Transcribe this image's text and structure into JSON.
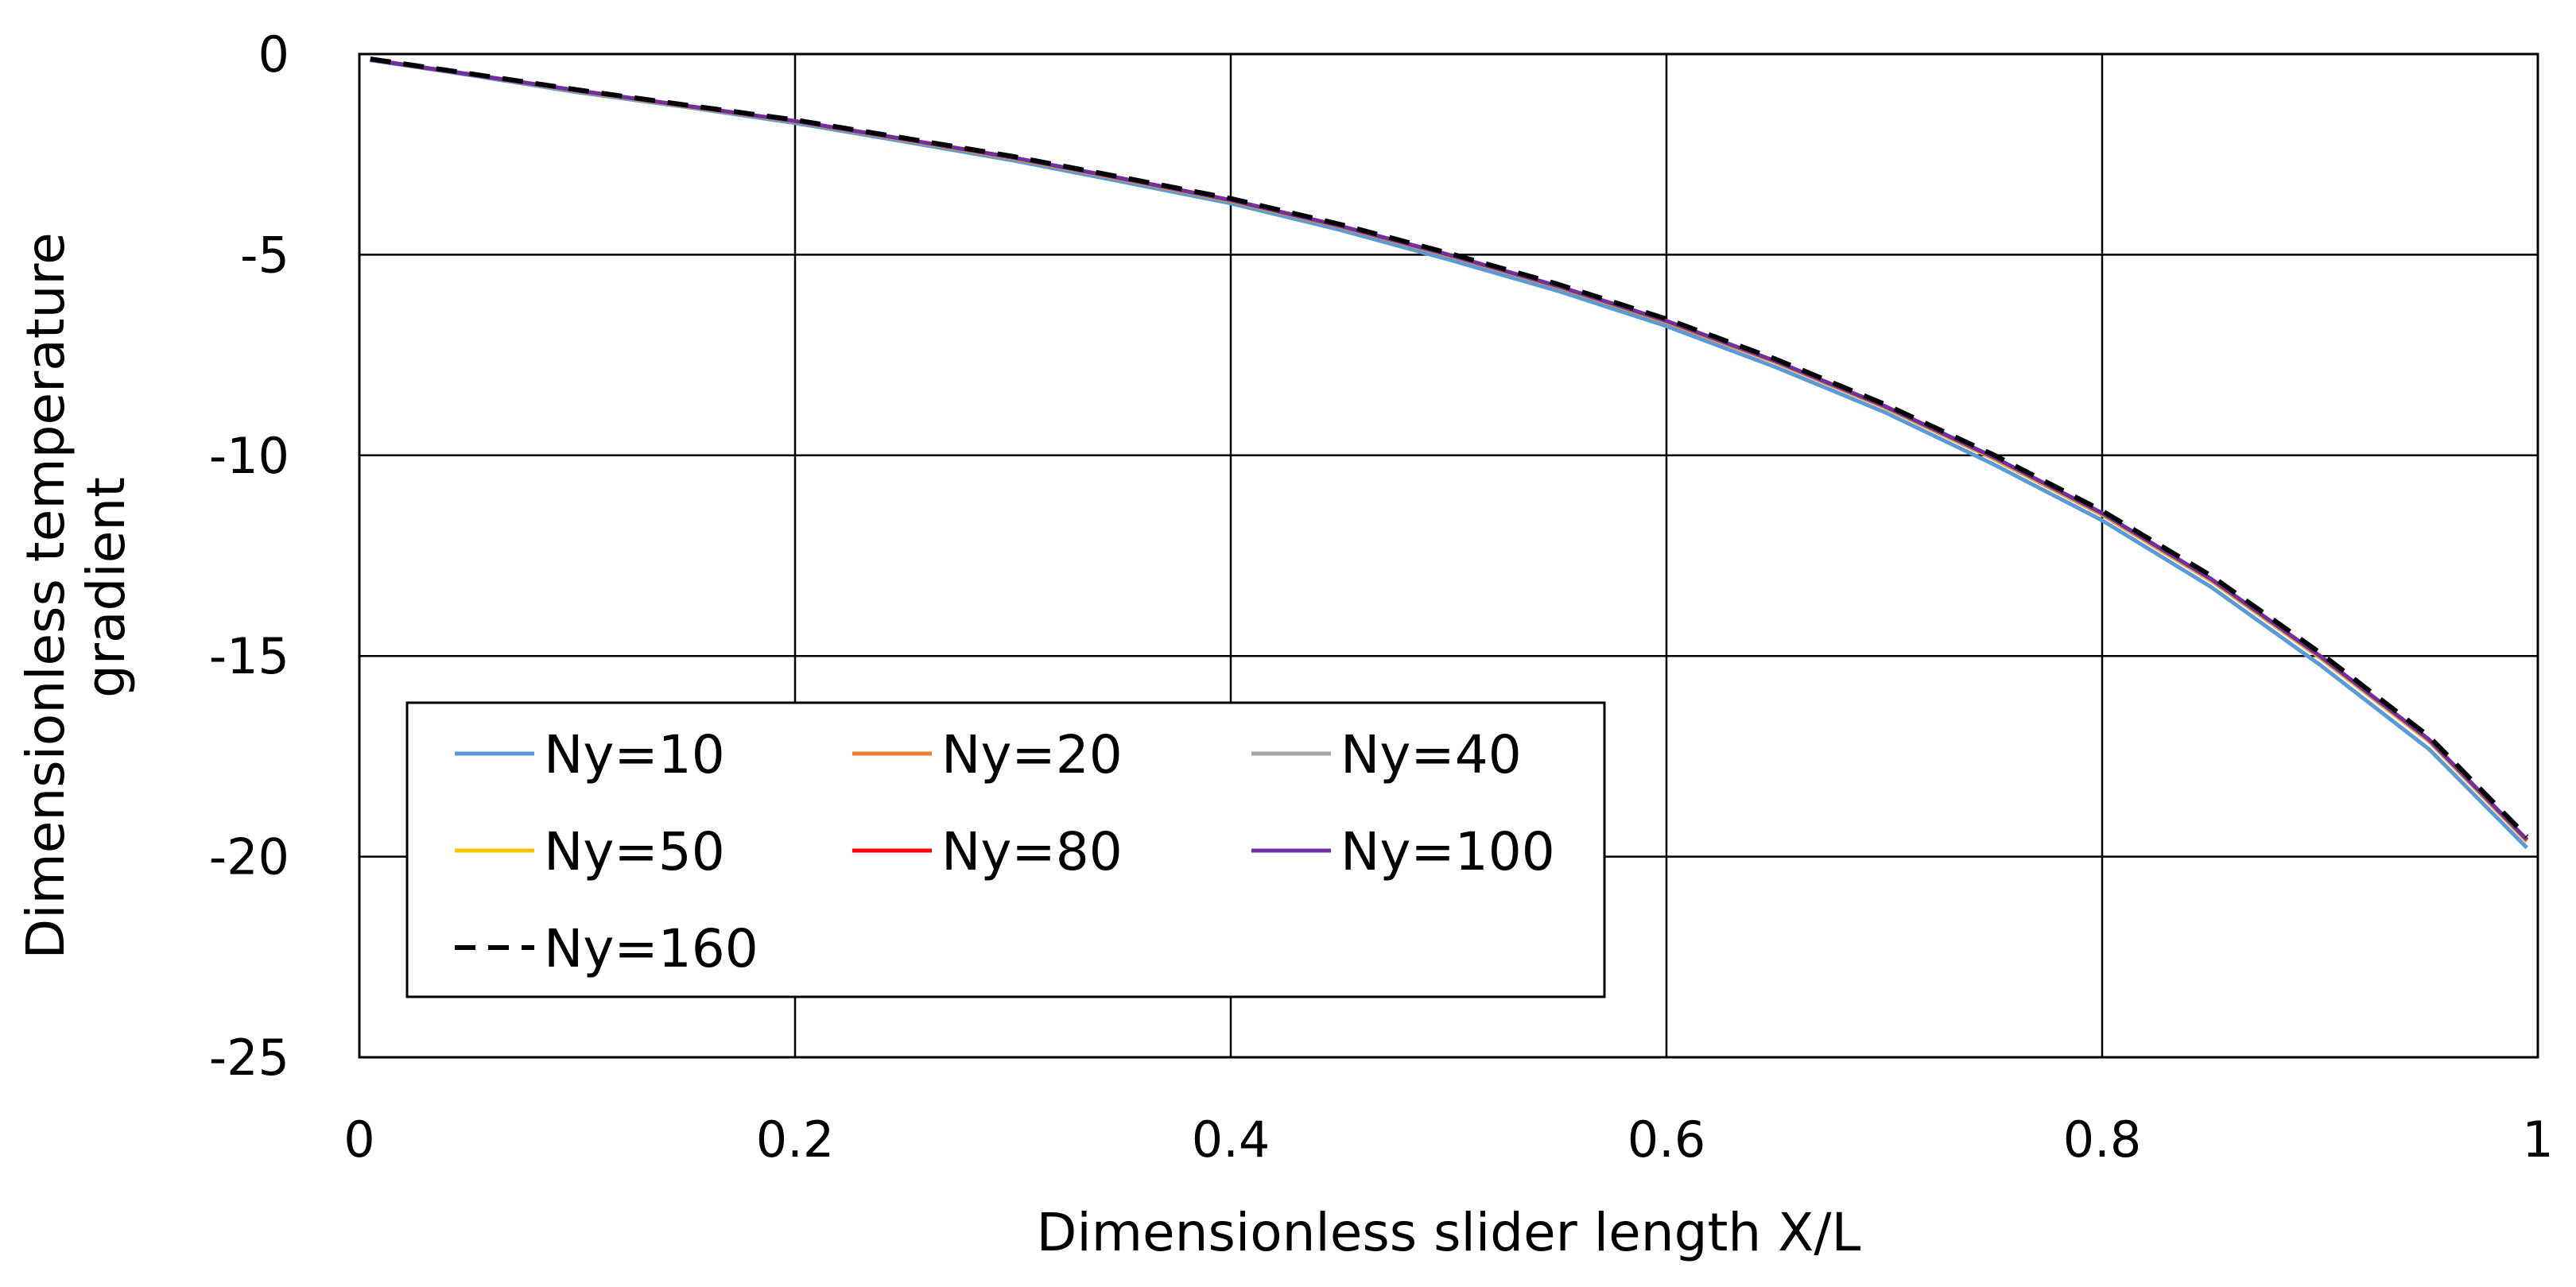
{
  "chart_data": {
    "type": "line",
    "title": "",
    "xlabel": "Dimensionless slider length X/L",
    "ylabel_lines": [
      "Dimensionless temperature",
      "gradient"
    ],
    "xlim": [
      0,
      1
    ],
    "ylim": [
      -25,
      0
    ],
    "xticks": [
      0,
      0.2,
      0.4,
      0.6,
      0.8,
      1
    ],
    "xtick_labels": [
      "0",
      "0.2",
      "0.4",
      "0.6",
      "0.8",
      "1"
    ],
    "yticks": [
      0,
      -5,
      -10,
      -15,
      -20,
      -25
    ],
    "ytick_labels": [
      "0",
      "-5",
      "-10",
      "-15",
      "-20",
      "-25"
    ],
    "grid": true,
    "legend_position": "lower-left",
    "x": [
      0.005,
      0.05,
      0.1,
      0.15,
      0.2,
      0.25,
      0.3,
      0.35,
      0.4,
      0.45,
      0.5,
      0.55,
      0.6,
      0.65,
      0.7,
      0.75,
      0.8,
      0.85,
      0.9,
      0.95,
      0.995
    ],
    "series": [
      {
        "name": "Ny=10",
        "color": "#5B9BD5",
        "dash": "solid",
        "values": [
          -0.15,
          -0.52,
          -0.95,
          -1.32,
          -1.72,
          -2.18,
          -2.65,
          -3.18,
          -3.72,
          -4.38,
          -5.12,
          -5.9,
          -6.78,
          -7.8,
          -8.92,
          -10.22,
          -11.62,
          -13.28,
          -15.22,
          -17.32,
          -19.78
        ]
      },
      {
        "name": "Ny=20",
        "color": "#ED7D31",
        "dash": "solid",
        "values": [
          -0.14,
          -0.5,
          -0.92,
          -1.3,
          -1.68,
          -2.14,
          -2.6,
          -3.12,
          -3.66,
          -4.3,
          -5.02,
          -5.8,
          -6.68,
          -7.68,
          -8.8,
          -10.08,
          -11.48,
          -13.12,
          -15.04,
          -17.12,
          -19.62
        ]
      },
      {
        "name": "Ny=40",
        "color": "#A5A5A5",
        "dash": "solid",
        "values": [
          -0.14,
          -0.5,
          -0.92,
          -1.3,
          -1.68,
          -2.13,
          -2.59,
          -3.11,
          -3.65,
          -4.29,
          -5.01,
          -5.79,
          -6.66,
          -7.66,
          -8.78,
          -10.06,
          -11.46,
          -13.1,
          -15.02,
          -17.1,
          -19.6
        ]
      },
      {
        "name": "Ny=50",
        "color": "#FFC000",
        "dash": "solid",
        "values": [
          -0.14,
          -0.5,
          -0.92,
          -1.3,
          -1.68,
          -2.13,
          -2.59,
          -3.11,
          -3.65,
          -4.29,
          -5.01,
          -5.79,
          -6.66,
          -7.66,
          -8.78,
          -10.06,
          -11.46,
          -13.1,
          -15.02,
          -17.1,
          -19.6
        ]
      },
      {
        "name": "Ny=80",
        "color": "#FF0000",
        "dash": "solid",
        "values": [
          -0.14,
          -0.5,
          -0.91,
          -1.29,
          -1.67,
          -2.12,
          -2.58,
          -3.1,
          -3.64,
          -4.28,
          -5,
          -5.78,
          -6.65,
          -7.65,
          -8.77,
          -10.04,
          -11.44,
          -13.08,
          -15,
          -17.08,
          -19.58
        ]
      },
      {
        "name": "Ny=100",
        "color": "#7030A0",
        "dash": "solid",
        "values": [
          -0.14,
          -0.5,
          -0.91,
          -1.29,
          -1.67,
          -2.12,
          -2.58,
          -3.1,
          -3.64,
          -4.28,
          -5,
          -5.78,
          -6.65,
          -7.65,
          -8.77,
          -10.04,
          -11.44,
          -13.08,
          -15,
          -17.08,
          -19.58
        ]
      },
      {
        "name": "Ny=160",
        "color": "#000000",
        "dash": "dashed",
        "values": [
          -0.12,
          -0.48,
          -0.89,
          -1.27,
          -1.64,
          -2.09,
          -2.55,
          -3.07,
          -3.6,
          -4.24,
          -4.96,
          -5.73,
          -6.6,
          -7.6,
          -8.72,
          -9.98,
          -11.38,
          -13,
          -14.92,
          -17,
          -19.5
        ]
      }
    ]
  }
}
